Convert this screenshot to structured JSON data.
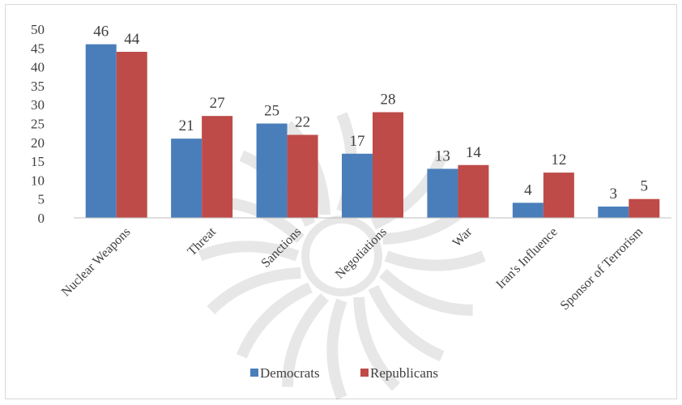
{
  "chart_data": {
    "type": "bar",
    "title": "",
    "xlabel": "",
    "ylabel": "",
    "categories": [
      "Nuclear Weapons",
      "Threat",
      "Sanctions",
      "Negotiations",
      "War",
      "Iran's Influence",
      "Sponsor of Terrorism"
    ],
    "series": [
      {
        "name": "Democrats",
        "values": [
          46,
          21,
          25,
          17,
          13,
          4,
          3
        ],
        "color": "#4a7ebb"
      },
      {
        "name": "Republicans",
        "values": [
          44,
          27,
          22,
          28,
          14,
          12,
          5
        ],
        "color": "#be4b48"
      }
    ],
    "ylim": [
      0,
      50
    ],
    "yticks": [
      0,
      5,
      10,
      15,
      20,
      25,
      30,
      35,
      40,
      45,
      50
    ],
    "grid": false,
    "data_labels": true,
    "legend": "bottom"
  }
}
